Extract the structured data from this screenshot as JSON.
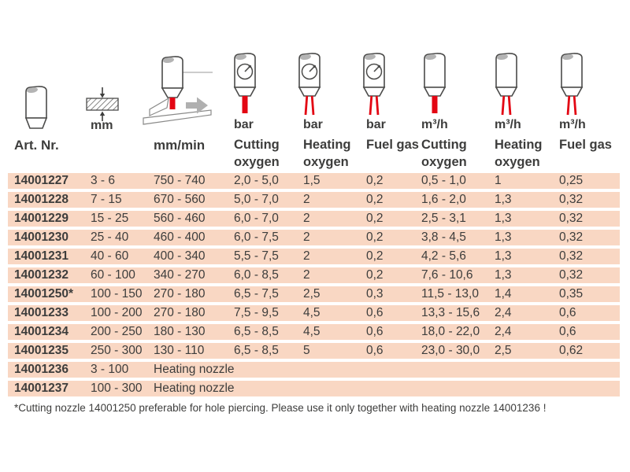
{
  "header": {
    "columns": [
      {
        "id": "art-nr",
        "unit": "",
        "name": "Art. Nr.",
        "icon": "nozzle-icon"
      },
      {
        "id": "plate-thickness",
        "unit": "mm",
        "name": "",
        "icon": "plate-thickness-icon"
      },
      {
        "id": "cutting-speed",
        "unit": "",
        "name": "mm/min",
        "icon": "cutting-torch-icon"
      },
      {
        "id": "cutting-oxygen-pressure",
        "unit": "bar",
        "name": "Cutting\noxygen",
        "icon": "gauge-nozzle-single-jet-icon"
      },
      {
        "id": "heating-oxygen-pressure",
        "unit": "bar",
        "name": "Heating\noxygen",
        "icon": "gauge-nozzle-double-jet-icon"
      },
      {
        "id": "fuel-gas-pressure",
        "unit": "bar",
        "name": "Fuel gas",
        "icon": "gauge-nozzle-double-jet-icon"
      },
      {
        "id": "cutting-oxygen-flow",
        "unit": "m³/h",
        "name": "Cutting\noxygen",
        "icon": "nozzle-single-jet-icon"
      },
      {
        "id": "heating-oxygen-flow",
        "unit": "m³/h",
        "name": "Heating\noxygen",
        "icon": "nozzle-double-jet-icon"
      },
      {
        "id": "fuel-gas-flow",
        "unit": "m³/h",
        "name": "Fuel gas",
        "icon": "nozzle-double-jet-icon"
      }
    ]
  },
  "rows": [
    {
      "cells": [
        "14001227",
        "3 - 6",
        "750 - 740",
        "2,0 - 5,0",
        "1,5",
        "0,2",
        "0,5 - 1,0",
        "1",
        "0,25"
      ]
    },
    {
      "cells": [
        "14001228",
        "7 - 15",
        "670 - 560",
        "5,0 - 7,0",
        "2",
        "0,2",
        "1,6 - 2,0",
        "1,3",
        "0,32"
      ]
    },
    {
      "cells": [
        "14001229",
        "15 - 25",
        "560 - 460",
        "6,0 - 7,0",
        "2",
        "0,2",
        "2,5 - 3,1",
        "1,3",
        "0,32"
      ]
    },
    {
      "cells": [
        "14001230",
        "25 - 40",
        "460 - 400",
        "6,0 - 7,5",
        "2",
        "0,2",
        "3,8 - 4,5",
        "1,3",
        "0,32"
      ]
    },
    {
      "cells": [
        "14001231",
        "40 - 60",
        "400 - 340",
        "5,5 - 7,5",
        "2",
        "0,2",
        "4,2 - 5,6",
        "1,3",
        "0,32"
      ]
    },
    {
      "cells": [
        "14001232",
        "60 - 100",
        "340 - 270",
        "6,0 - 8,5",
        "2",
        "0,2",
        "7,6 - 10,6",
        "1,3",
        "0,32"
      ]
    },
    {
      "cells": [
        "14001250*",
        "100 - 150",
        "270 - 180",
        "6,5 - 7,5",
        "2,5",
        "0,3",
        "11,5 - 13,0",
        "1,4",
        "0,35"
      ]
    },
    {
      "cells": [
        "14001233",
        "100 - 200",
        "270 - 180",
        "7,5 - 9,5",
        "4,5",
        "0,6",
        "13,3 - 15,6",
        "2,4",
        "0,6"
      ]
    },
    {
      "cells": [
        "14001234",
        "200 - 250",
        "180 - 130",
        "6,5 - 8,5",
        "4,5",
        "0,6",
        "18,0 - 22,0",
        "2,4",
        "0,6"
      ]
    },
    {
      "cells": [
        "14001235",
        "250 - 300",
        "130 - 110",
        "6,5 - 8,5",
        "5",
        "0,6",
        "23,0 - 30,0",
        "2,5",
        "0,62"
      ]
    },
    {
      "cells": [
        "14001236",
        "3 - 100",
        "Heating nozzle"
      ]
    },
    {
      "cells": [
        "14001237",
        "100 - 300",
        "Heating nozzle"
      ]
    }
  ],
  "footnote": "*Cutting nozzle 14001250 preferable for hole piercing. Please use it only together with heating nozzle 14001236 !",
  "colors": {
    "row_band": "#f9d7c3",
    "accent_red": "#e30613",
    "text": "#3d3d3c",
    "icon_gray": "#b4b4b4"
  }
}
